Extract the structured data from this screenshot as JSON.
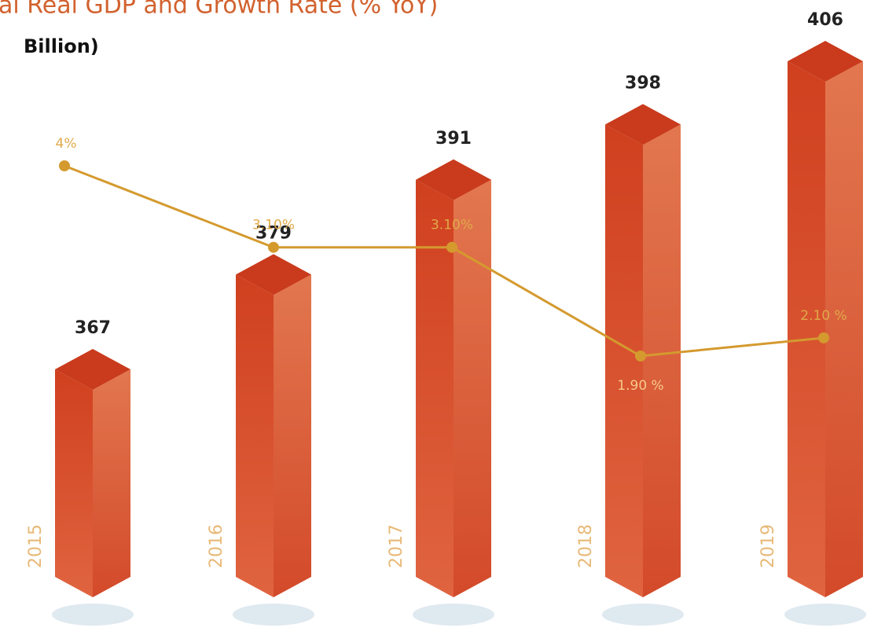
{
  "chart_data": {
    "type": "bar",
    "title": "al Real GDP and Growth Rate (% YoY)",
    "subtitle": "Billion)",
    "categories": [
      "2015",
      "2016",
      "2017",
      "2018",
      "2019"
    ],
    "series": [
      {
        "type": "bar",
        "color": "#d9482a",
        "values": [
          367,
          379,
          391,
          398,
          406
        ]
      },
      {
        "type": "line",
        "axis": "y2",
        "color": "#d49a2e",
        "values": [
          4,
          3.1,
          3.1,
          1.9,
          2.1
        ],
        "value_labels": [
          "4%",
          "3.10%",
          "3.10%",
          "1.90 %",
          "2.10 %"
        ]
      }
    ]
  }
}
